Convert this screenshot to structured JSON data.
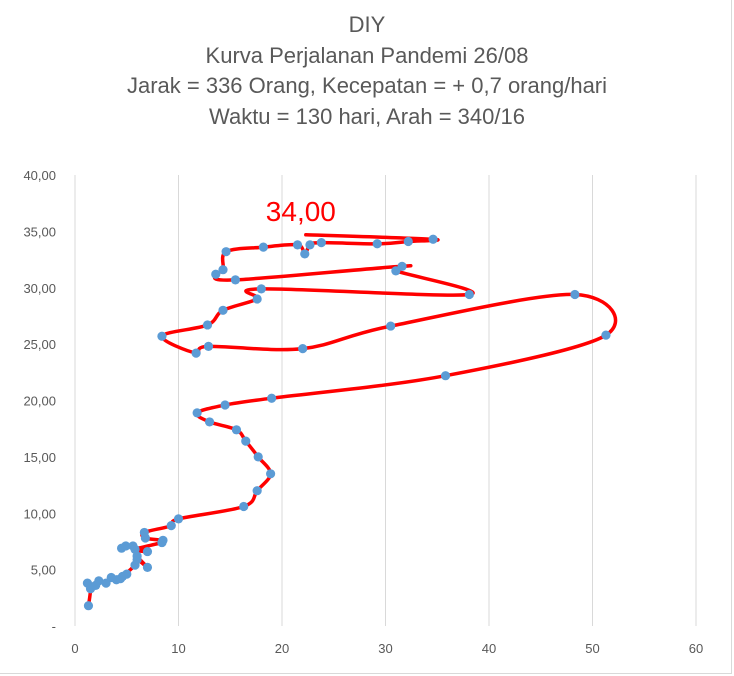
{
  "chart_data": {
    "type": "scatter",
    "title_lines": [
      "DIY",
      "Kurva Perjalanan Pandemi 26/08",
      "Jarak = 336 Orang, Kecepatan = + 0,7 orang/hari",
      "Waktu = 130 hari, Arah = 340/16"
    ],
    "annotation": "34,00",
    "x_ticks": [
      "0",
      "10",
      "20",
      "30",
      "40",
      "50",
      "60"
    ],
    "y_ticks": [
      "-",
      "5,00",
      "10,00",
      "15,00",
      "20,00",
      "25,00",
      "30,00",
      "35,00",
      "40,00"
    ],
    "xlim": [
      0,
      60
    ],
    "ylim": [
      0,
      40
    ],
    "grid": "vertical",
    "series": [
      {
        "marker_color": "#5b9bd5",
        "line_color": "#ff0000",
        "points": [
          [
            1.3,
            1.8
          ],
          [
            1.5,
            3.3
          ],
          [
            1.2,
            3.8
          ],
          [
            2.0,
            3.6
          ],
          [
            2.3,
            4.0
          ],
          [
            3.0,
            3.8
          ],
          [
            3.5,
            4.3
          ],
          [
            4.0,
            4.1
          ],
          [
            4.6,
            4.4
          ],
          [
            5.0,
            4.6
          ],
          [
            4.4,
            4.2
          ],
          [
            5.8,
            5.4
          ],
          [
            6.0,
            5.9
          ],
          [
            7.0,
            5.2
          ],
          [
            6.0,
            6.2
          ],
          [
            5.6,
            7.1
          ],
          [
            4.5,
            6.9
          ],
          [
            4.9,
            7.1
          ],
          [
            7.0,
            6.6
          ],
          [
            5.8,
            6.8
          ],
          [
            8.4,
            7.4
          ],
          [
            8.5,
            7.6
          ],
          [
            6.8,
            7.8
          ],
          [
            6.7,
            8.3
          ],
          [
            9.3,
            8.9
          ],
          [
            10.0,
            9.5
          ],
          [
            16.3,
            10.6
          ],
          [
            17.6,
            12.0
          ],
          [
            18.9,
            13.5
          ],
          [
            17.7,
            15.0
          ],
          [
            16.5,
            16.4
          ],
          [
            15.6,
            17.4
          ],
          [
            13.0,
            18.1
          ],
          [
            11.8,
            18.9
          ],
          [
            14.5,
            19.6
          ],
          [
            19.0,
            20.2
          ],
          [
            35.8,
            22.2
          ],
          [
            51.3,
            25.8
          ],
          [
            48.3,
            29.4
          ],
          [
            30.5,
            26.6
          ],
          [
            22.0,
            24.6
          ],
          [
            12.9,
            24.8
          ],
          [
            11.7,
            24.2
          ],
          [
            8.4,
            25.7
          ],
          [
            12.8,
            26.7
          ],
          [
            14.3,
            28.0
          ],
          [
            17.6,
            29.0
          ],
          [
            18.0,
            29.9
          ],
          [
            38.1,
            29.4
          ],
          [
            31.0,
            31.5
          ],
          [
            31.6,
            31.9
          ],
          [
            15.5,
            30.7
          ],
          [
            13.6,
            31.2
          ],
          [
            14.3,
            31.6
          ],
          [
            14.6,
            33.2
          ],
          [
            18.2,
            33.6
          ],
          [
            21.5,
            33.8
          ],
          [
            22.2,
            33.0
          ],
          [
            22.7,
            33.8
          ],
          [
            23.8,
            34.0
          ],
          [
            29.2,
            33.9
          ],
          [
            32.2,
            34.1
          ],
          [
            34.6,
            34.3
          ],
          [
            22.3,
            34.7
          ]
        ]
      }
    ]
  }
}
